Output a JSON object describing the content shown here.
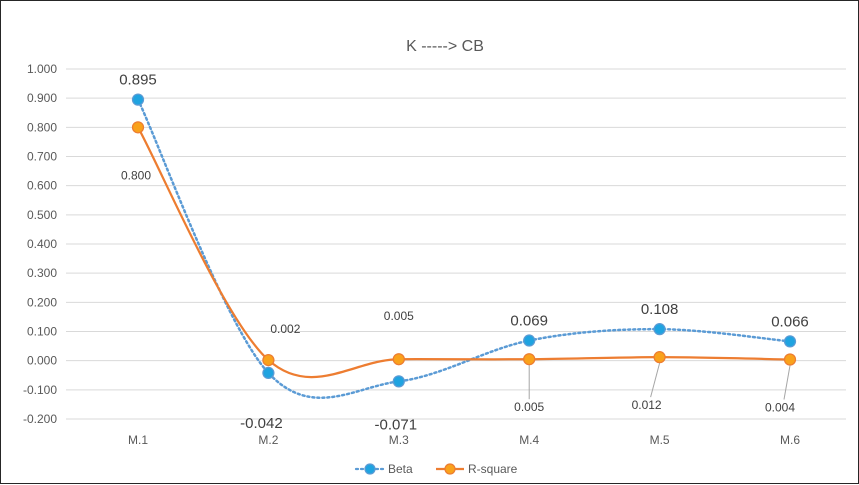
{
  "chart_data": {
    "type": "line",
    "title": "K -----> CB",
    "categories": [
      "M.1",
      "M.2",
      "M.3",
      "M.4",
      "M.5",
      "M.6"
    ],
    "y_ticks": [
      "1.000",
      "0.900",
      "0.800",
      "0.700",
      "0.600",
      "0.500",
      "0.400",
      "0.300",
      "0.200",
      "0.100",
      "0.000",
      "-0.100",
      "-0.200"
    ],
    "ylim": [
      -0.2,
      1.0
    ],
    "grid": true,
    "legend_position": "bottom",
    "series": [
      {
        "name": "Beta",
        "values": [
          0.895,
          -0.042,
          -0.071,
          0.069,
          0.108,
          0.066
        ],
        "labels": [
          "0.895",
          "-0.042",
          "-0.071",
          "0.069",
          "0.108",
          "0.066"
        ],
        "color": "#5B9BD5",
        "marker_color": "#1FA3E0",
        "line_style": "dotted",
        "smooth": true
      },
      {
        "name": "R-square",
        "values": [
          0.8,
          0.002,
          0.005,
          0.005,
          0.012,
          0.004
        ],
        "labels": [
          "0.800",
          "0.002",
          "0.005",
          "0.005",
          "0.012",
          "0.004"
        ],
        "color": "#ED7D31",
        "marker_color": "#F9A21B",
        "line_style": "solid",
        "smooth": true
      }
    ]
  }
}
